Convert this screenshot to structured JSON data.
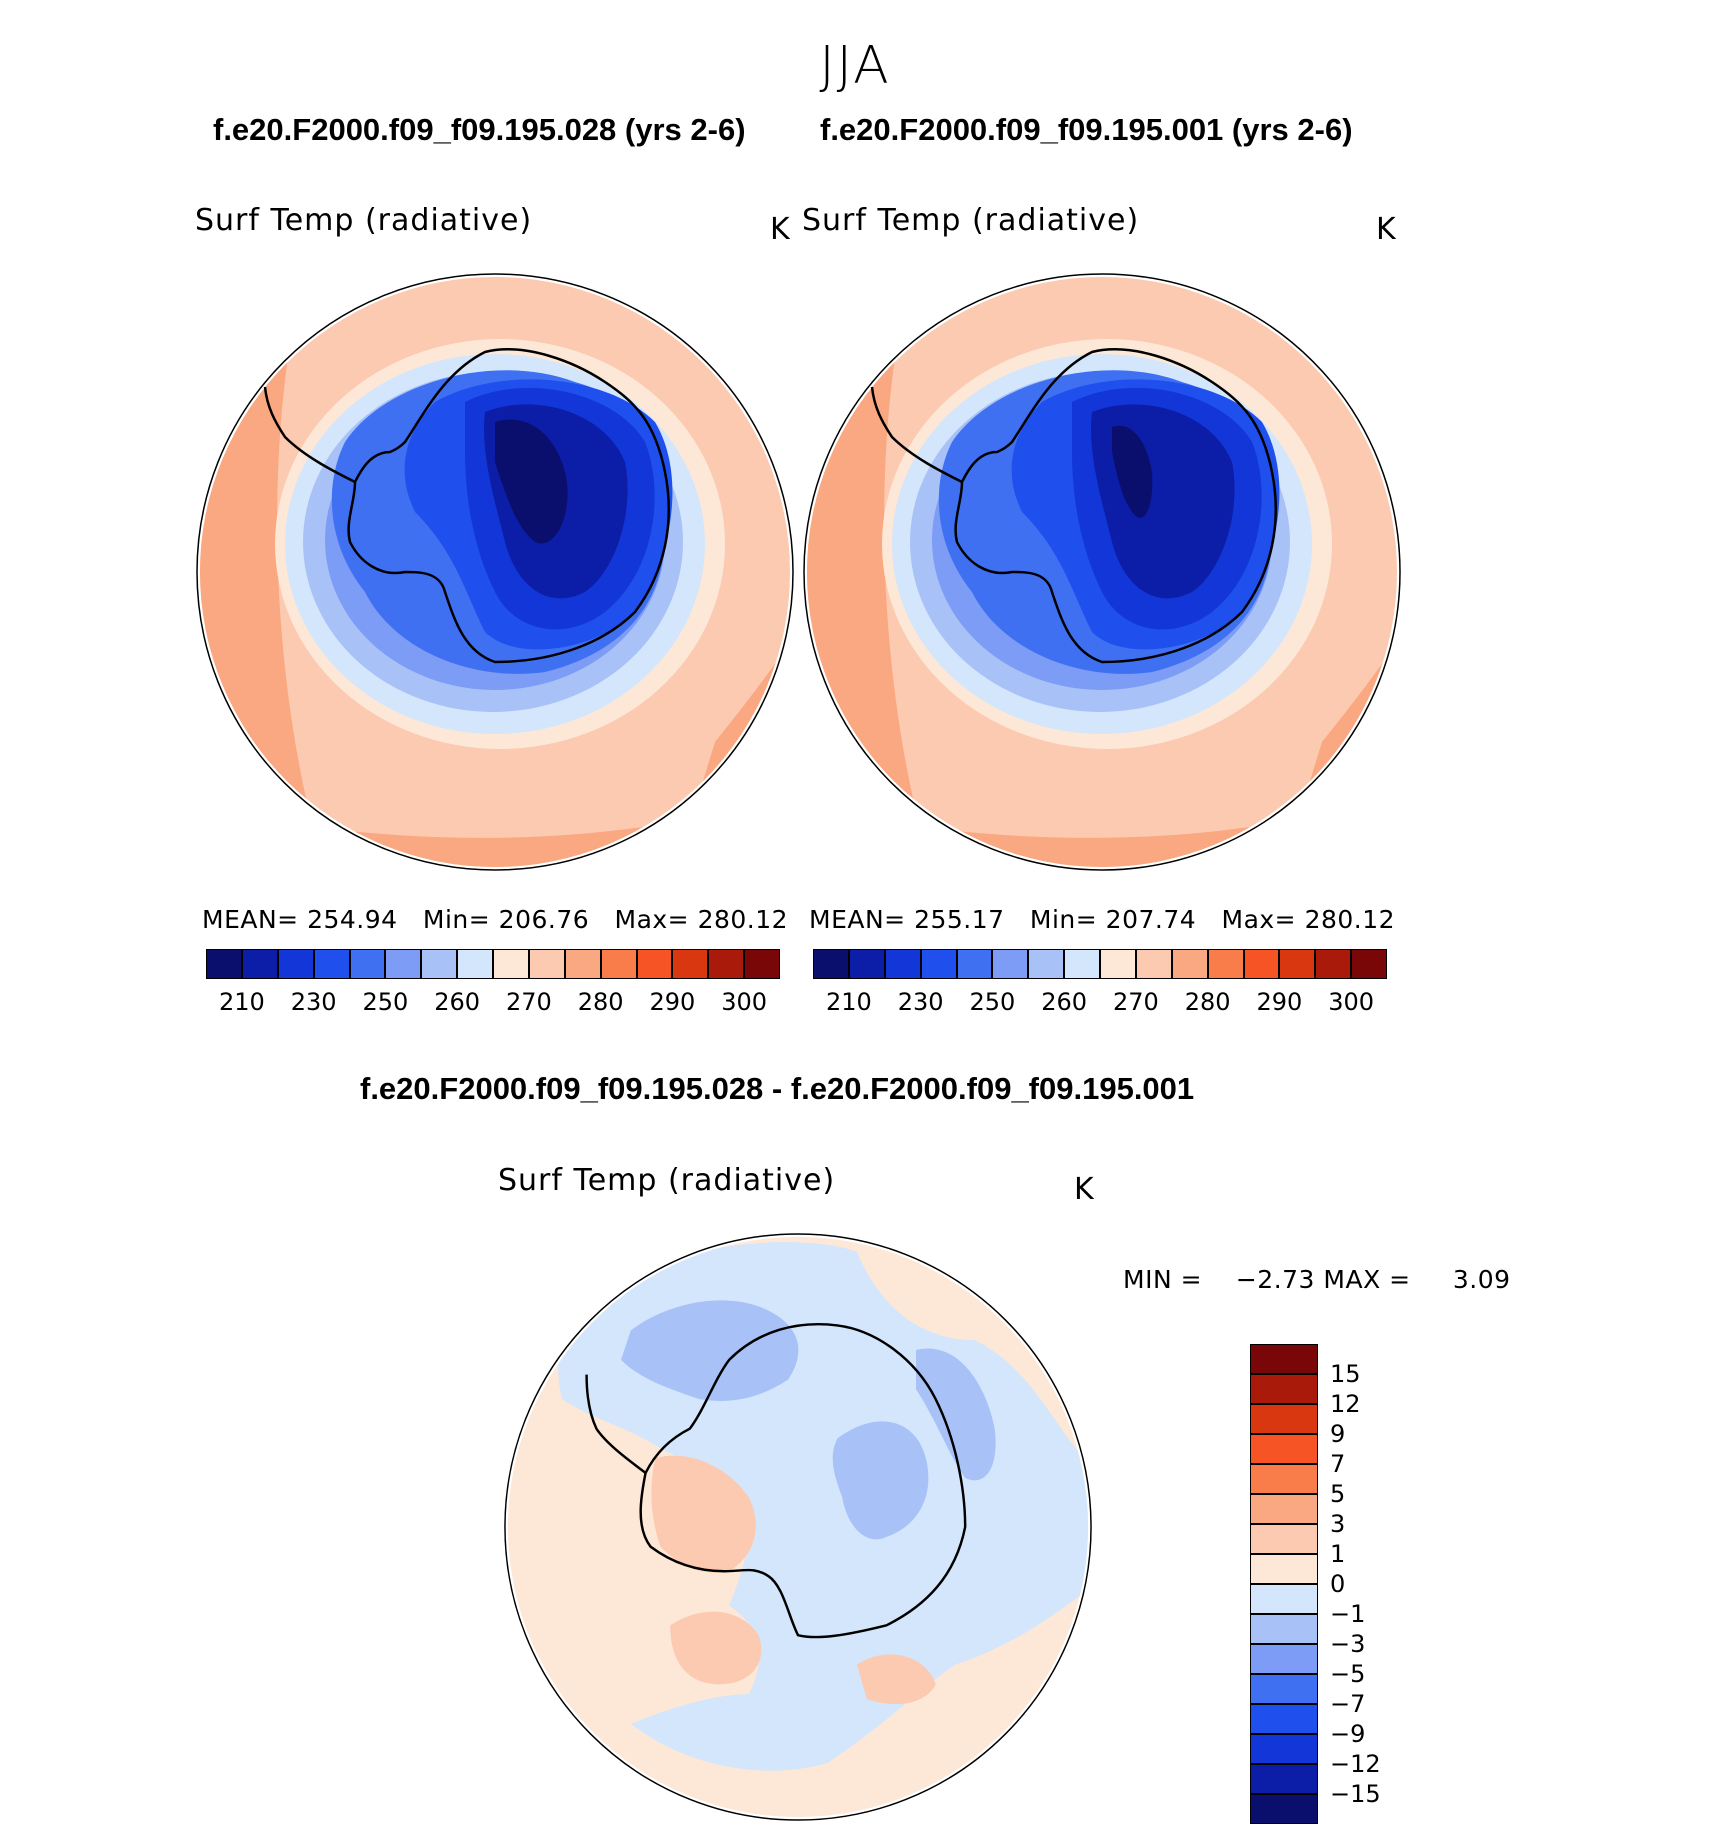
{
  "figure": {
    "season_title": "JJA",
    "case1_title": "f.e20.F2000.f09_f09.195.028 (yrs 2-6)",
    "case2_title": "f.e20.F2000.f09_f09.195.001 (yrs 2-6)",
    "diff_title": "f.e20.F2000.f09_f09.195.028 - f.e20.F2000.f09_f09.195.001"
  },
  "panels": [
    {
      "id": "case1",
      "variable": "Surf Temp (radiative)",
      "units": "K",
      "stats": {
        "mean_label": "MEAN=",
        "mean": "254.94",
        "min_label": "Min=",
        "min": "206.76",
        "max_label": "Max=",
        "max": "280.12"
      }
    },
    {
      "id": "case2",
      "variable": "Surf Temp (radiative)",
      "units": "K",
      "stats": {
        "mean_label": "MEAN=",
        "mean": "255.17",
        "min_label": "Min=",
        "min": "207.74",
        "max_label": "Max=",
        "max": "280.12"
      }
    },
    {
      "id": "diff",
      "variable": "Surf Temp (radiative)",
      "units": "K",
      "stats": {
        "min_label": "MIN =",
        "min": "−2.73",
        "max_label": "MAX =",
        "max": "3.09"
      }
    }
  ],
  "colorbar_abs": {
    "colors": [
      "#0a0f6e",
      "#0c1ea8",
      "#1236d8",
      "#1f50ee",
      "#4070f2",
      "#7c9cf5",
      "#a8c2f8",
      "#d4e6fb",
      "#fde8d8",
      "#fccab0",
      "#f9a881",
      "#f87d4b",
      "#f65424",
      "#d93710",
      "#a91a0b",
      "#7a0707"
    ],
    "labels": [
      "210",
      "230",
      "250",
      "260",
      "270",
      "280",
      "290",
      "300"
    ]
  },
  "colorbar_diff": {
    "colors_top_to_bottom": [
      "#7a0707",
      "#a91a0b",
      "#d93710",
      "#f65424",
      "#f87d4b",
      "#f9a881",
      "#fccab0",
      "#fde8d8",
      "#d4e6fb",
      "#a8c2f8",
      "#7c9cf5",
      "#4070f2",
      "#1f50ee",
      "#1236d8",
      "#0c1ea8",
      "#0a0f6e"
    ],
    "labels": [
      "15",
      "12",
      "9",
      "7",
      "5",
      "3",
      "1",
      "0",
      "−1",
      "−3",
      "−5",
      "−7",
      "−9",
      "−12",
      "−15"
    ]
  }
}
